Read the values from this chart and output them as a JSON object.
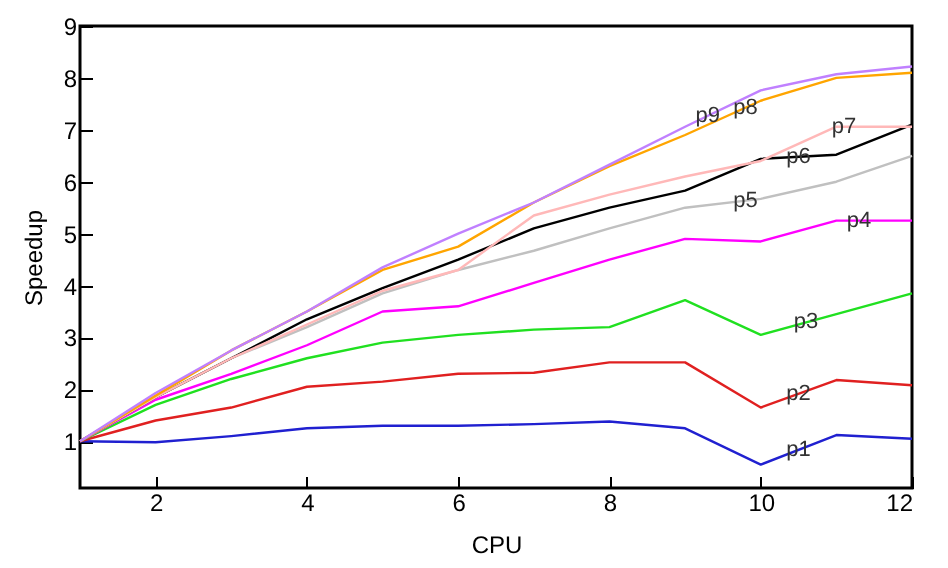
{
  "chart_data": {
    "type": "line",
    "xlabel": "CPU",
    "ylabel": "Speedup",
    "x": [
      1,
      2,
      3,
      4,
      5,
      6,
      7,
      8,
      9,
      10,
      11,
      12
    ],
    "xlim": [
      1,
      12
    ],
    "xticks": [
      2,
      4,
      6,
      8,
      10,
      12
    ],
    "ylim": [
      0.1,
      9
    ],
    "yticks": [
      1,
      2,
      3,
      4,
      5,
      6,
      7,
      8,
      9
    ],
    "grid": false,
    "series": [
      {
        "name": "p1",
        "color": "#2020d0",
        "values": [
          1,
          0.98,
          1.1,
          1.25,
          1.3,
          1.3,
          1.33,
          1.38,
          1.25,
          0.55,
          1.12,
          1.05
        ]
      },
      {
        "name": "p2",
        "color": "#e02020",
        "values": [
          1,
          1.4,
          1.65,
          2.05,
          2.15,
          2.3,
          2.32,
          2.52,
          2.52,
          1.65,
          2.18,
          2.08
        ]
      },
      {
        "name": "p3",
        "color": "#20e020",
        "values": [
          1,
          1.7,
          2.2,
          2.6,
          2.9,
          3.05,
          3.15,
          3.2,
          3.72,
          3.05,
          3.45,
          3.85
        ]
      },
      {
        "name": "p4",
        "color": "#ff00ff",
        "values": [
          1,
          1.8,
          2.3,
          2.85,
          3.5,
          3.6,
          4.05,
          4.5,
          4.9,
          4.85,
          5.25,
          5.25
        ]
      },
      {
        "name": "p5",
        "color": "#c0c0c0",
        "values": [
          1,
          1.85,
          2.6,
          3.2,
          3.85,
          4.3,
          4.67,
          5.1,
          5.5,
          5.67,
          6.0,
          6.5
        ]
      },
      {
        "name": "p6",
        "color": "#000000",
        "values": [
          1,
          1.85,
          2.6,
          3.35,
          3.95,
          4.5,
          5.1,
          5.5,
          5.83,
          6.44,
          6.52,
          7.1
        ]
      },
      {
        "name": "p7",
        "color": "#ffb8b8",
        "values": [
          1,
          1.85,
          2.6,
          3.25,
          3.9,
          4.3,
          5.35,
          5.75,
          6.1,
          6.4,
          7.06,
          7.06
        ]
      },
      {
        "name": "p8",
        "color": "#ffa500",
        "values": [
          1,
          1.88,
          2.75,
          3.5,
          4.3,
          4.75,
          5.6,
          6.3,
          6.9,
          7.56,
          8.0,
          8.1
        ]
      },
      {
        "name": "p9",
        "color": "#c080ff",
        "values": [
          1,
          1.93,
          2.75,
          3.5,
          4.35,
          5.0,
          5.6,
          6.33,
          7.06,
          7.76,
          8.07,
          8.22
        ]
      }
    ]
  }
}
